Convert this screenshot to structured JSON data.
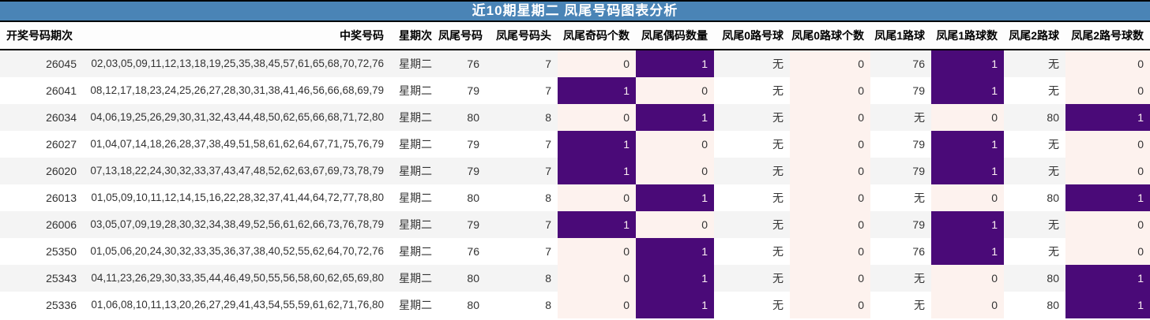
{
  "title": "近10期星期二 凤尾号码图表分析",
  "colors": {
    "title_bar_blue": "#4a84b6",
    "title_text": "#ffffff",
    "highlight_purple": "#4a0a78",
    "highlight_pink": "#fdf2ee",
    "row_stripe_gray": "#f4f4f4",
    "border_black": "#000000"
  },
  "chart_data": {
    "type": "table",
    "title": "近10期星期二 凤尾号码图表分析",
    "columns": [
      "开奖号码期次",
      "中奖号码",
      "星期次",
      "凤尾号码",
      "凤尾号码头",
      "凤尾奇码个数",
      "凤尾偶码数量",
      "凤尾0路号球",
      "凤尾0路球个数",
      "凤尾1路球",
      "凤尾1路球数",
      "凤尾2路球",
      "凤尾2路号球数"
    ],
    "highlight_rule": "count cells with value 1 are purple, value 0 are light pink",
    "rows": [
      [
        "26045",
        "02,03,05,09,11,12,13,18,19,25,35,38,45,57,61,65,68,70,72,76",
        "星期二",
        "76",
        "7",
        "0",
        "1",
        "无",
        "0",
        "76",
        "1",
        "无",
        "0"
      ],
      [
        "26041",
        "08,12,17,18,23,24,25,26,27,28,30,31,38,41,46,56,66,68,69,79",
        "星期二",
        "79",
        "7",
        "1",
        "0",
        "无",
        "0",
        "79",
        "1",
        "无",
        "0"
      ],
      [
        "26034",
        "04,06,19,25,26,29,30,31,32,43,44,48,50,62,65,66,68,71,72,80",
        "星期二",
        "80",
        "8",
        "0",
        "1",
        "无",
        "0",
        "无",
        "0",
        "80",
        "1"
      ],
      [
        "26027",
        "01,04,07,14,18,26,28,37,38,49,51,58,61,62,64,67,71,75,76,79",
        "星期二",
        "79",
        "7",
        "1",
        "0",
        "无",
        "0",
        "79",
        "1",
        "无",
        "0"
      ],
      [
        "26020",
        "07,13,18,22,24,30,32,33,37,43,47,48,52,62,63,67,69,73,78,79",
        "星期二",
        "79",
        "7",
        "1",
        "0",
        "无",
        "0",
        "79",
        "1",
        "无",
        "0"
      ],
      [
        "26013",
        "01,05,09,10,11,12,14,15,16,22,28,32,37,41,44,64,72,77,78,80",
        "星期二",
        "80",
        "8",
        "0",
        "1",
        "无",
        "0",
        "无",
        "0",
        "80",
        "1"
      ],
      [
        "26006",
        "03,05,07,09,19,28,30,32,34,38,49,52,56,61,62,66,73,76,78,79",
        "星期二",
        "79",
        "7",
        "1",
        "0",
        "无",
        "0",
        "79",
        "1",
        "无",
        "0"
      ],
      [
        "25350",
        "01,05,06,20,24,30,32,33,35,36,37,38,40,52,55,62,64,70,72,76",
        "星期二",
        "76",
        "7",
        "0",
        "1",
        "无",
        "0",
        "76",
        "1",
        "无",
        "0"
      ],
      [
        "25343",
        "04,11,23,26,29,30,33,35,44,46,49,50,55,56,58,60,62,65,69,80",
        "星期二",
        "80",
        "8",
        "0",
        "1",
        "无",
        "0",
        "无",
        "0",
        "80",
        "1"
      ],
      [
        "25336",
        "01,06,08,10,11,13,20,26,27,29,41,43,54,55,59,61,62,71,76,80",
        "星期二",
        "80",
        "8",
        "0",
        "1",
        "无",
        "0",
        "无",
        "0",
        "80",
        "1"
      ]
    ]
  }
}
